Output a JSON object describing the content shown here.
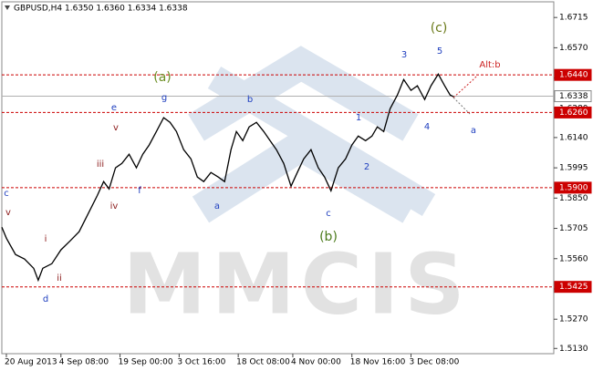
{
  "chart_data": {
    "type": "line",
    "title": "GBPUSD,H4  1.6350 1.6360 1.6334 1.6338",
    "watermark": "MMCIS",
    "xlim": [
      0,
      121.4
    ],
    "ylim": [
      1.5105,
      1.679
    ],
    "xticks": [
      {
        "value": 1,
        "label": "20 Aug 2013"
      },
      {
        "value": 13,
        "label": "4 Sep 08:00"
      },
      {
        "value": 26,
        "label": "19 Sep 00:00"
      },
      {
        "value": 39,
        "label": "3 Oct 16:00"
      },
      {
        "value": 52,
        "label": "18 Oct 08:00"
      },
      {
        "value": 64,
        "label": "4 Nov 00:00"
      },
      {
        "value": 77,
        "label": "18 Nov 16:00"
      },
      {
        "value": 90,
        "label": "3 Dec 08:00"
      }
    ],
    "yticks": [
      1.6715,
      {
        "value": 1.657,
        "label": "1.6570"
      },
      1.6425,
      {
        "value": 1.628,
        "label": "1.6280"
      },
      {
        "value": 1.614,
        "label": "1.6140"
      },
      1.5995,
      {
        "value": 1.585,
        "label": "1.5850"
      },
      1.5705,
      {
        "value": 1.556,
        "label": "1.5560"
      },
      1.5415,
      {
        "value": 1.527,
        "label": "1.5270"
      },
      {
        "value": 1.513,
        "label": "1.5130"
      }
    ],
    "levels": [
      {
        "value": 1.644,
        "label": "1.6440",
        "color": "#cc0000",
        "style": "dashed"
      },
      {
        "value": 1.6338,
        "label": "1.6338",
        "color": "#b0b0b0",
        "style": "solid"
      },
      {
        "value": 1.626,
        "label": "1.6260",
        "color": "#cc0000",
        "style": "dashed"
      },
      {
        "value": 1.59,
        "label": "1.5900",
        "color": "#cc0000",
        "style": "dashed"
      },
      {
        "value": 1.5425,
        "label": "1.5425",
        "color": "#cc0000",
        "style": "dashed"
      }
    ],
    "series": [
      {
        "name": "GBPUSD",
        "color": "#000000",
        "x": [
          0,
          1,
          3,
          5,
          7,
          8,
          9,
          11,
          13,
          15,
          17,
          19,
          21,
          22.4,
          23.6,
          25,
          26.4,
          28,
          29.6,
          31,
          32.4,
          34,
          35.6,
          37,
          38.4,
          40,
          41.6,
          43,
          44.4,
          46,
          47.6,
          49,
          50.4,
          51.6,
          53,
          54.4,
          56,
          57.6,
          59,
          60.4,
          62,
          63.6,
          65,
          66.4,
          68,
          69.6,
          71,
          72.4,
          74,
          75.6,
          77,
          78.4,
          80,
          81.4,
          82.6,
          84,
          85.4,
          87,
          88.4,
          90,
          91.4,
          93,
          94.4,
          96,
          97.4,
          98.6,
          99.4
        ],
        "values": [
          1.5711,
          1.5658,
          1.558,
          1.5558,
          1.5514,
          1.5457,
          1.5514,
          1.5536,
          1.5602,
          1.5645,
          1.5689,
          1.5776,
          1.5863,
          1.5929,
          1.5894,
          1.5995,
          1.6016,
          1.606,
          1.5995,
          1.606,
          1.6104,
          1.6169,
          1.6235,
          1.6213,
          1.6169,
          1.6082,
          1.6038,
          1.5951,
          1.5929,
          1.5973,
          1.5951,
          1.5929,
          1.6082,
          1.6169,
          1.6125,
          1.6191,
          1.6213,
          1.6169,
          1.6125,
          1.6082,
          1.6016,
          1.5907,
          1.5973,
          1.6038,
          1.6082,
          1.5995,
          1.5951,
          1.5885,
          1.5995,
          1.6038,
          1.6104,
          1.6147,
          1.6125,
          1.6147,
          1.6191,
          1.6169,
          1.6278,
          1.6344,
          1.6418,
          1.6366,
          1.6388,
          1.6322,
          1.6388,
          1.6444,
          1.6388,
          1.6344,
          1.6335
        ]
      }
    ],
    "annotations": [
      {
        "text": "c",
        "color": "#1f3fbf"
      },
      {
        "text": "v",
        "color": "#8b1a1a"
      },
      {
        "text": "i",
        "color": "#8b1a1a"
      },
      {
        "text": "ii",
        "color": "#8b1a1a"
      },
      {
        "text": "d",
        "color": "#1f3fbf"
      },
      {
        "text": "iii",
        "color": "#8b1a1a"
      },
      {
        "text": "iv",
        "color": "#8b1a1a"
      },
      {
        "text": "v",
        "color": "#8b1a1a"
      },
      {
        "text": "e",
        "color": "#1f3fbf"
      },
      {
        "text": "f",
        "color": "#1f3fbf"
      },
      {
        "text": "g",
        "color": "#1f3fbf"
      },
      {
        "text": "(a)",
        "color": "#6b8e23"
      },
      {
        "text": "a",
        "color": "#1f3fbf"
      },
      {
        "text": "b",
        "color": "#1f3fbf"
      },
      {
        "text": "c",
        "color": "#1f3fbf"
      },
      {
        "text": "(b)",
        "color": "#4a7a1a"
      },
      {
        "text": "1",
        "color": "#1f3fbf"
      },
      {
        "text": "2",
        "color": "#1f3fbf"
      },
      {
        "text": "3",
        "color": "#1f3fbf"
      },
      {
        "text": "4",
        "color": "#1f3fbf"
      },
      {
        "text": "5",
        "color": "#1f3fbf"
      },
      {
        "text": "(c)",
        "color": "#6b7a1a"
      },
      {
        "text": "Alt:b",
        "color": "#cc2222"
      },
      {
        "text": "a",
        "color": "#1f3fbf"
      }
    ]
  }
}
